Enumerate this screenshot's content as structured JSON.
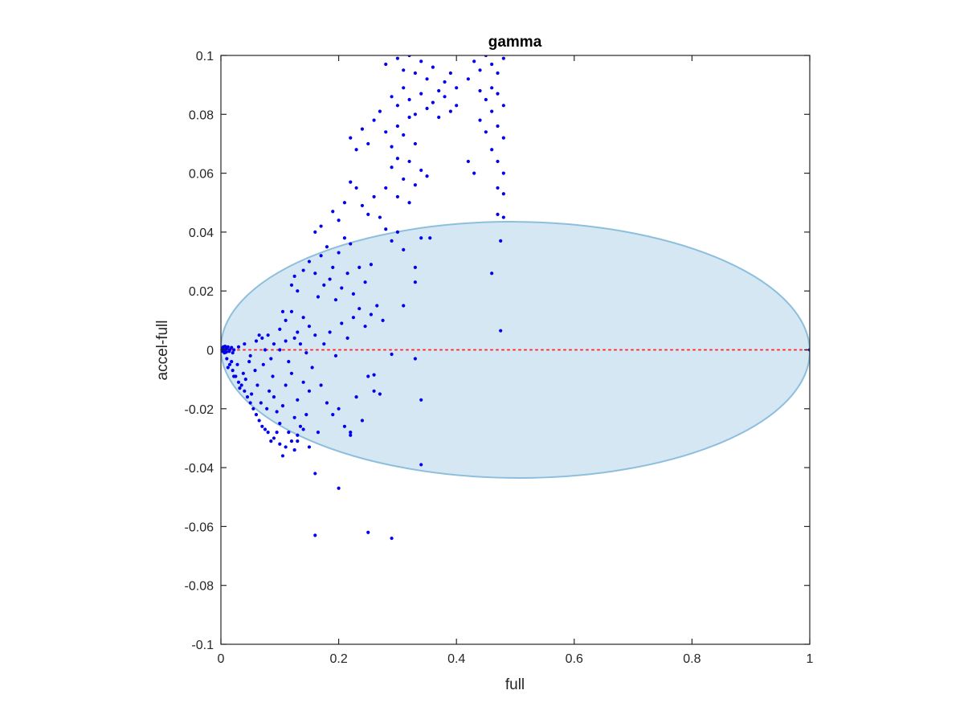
{
  "chart_data": {
    "type": "scatter",
    "title": "gamma",
    "xlabel": "full",
    "ylabel": "accel-full",
    "xlim": [
      0,
      1
    ],
    "ylim": [
      -0.1,
      0.1
    ],
    "xticks": [
      "0",
      "0.2",
      "0.4",
      "0.6",
      "0.8",
      "1"
    ],
    "yticks": [
      "-0.1",
      "-0.08",
      "-0.06",
      "-0.04",
      "-0.02",
      "0",
      "0.02",
      "0.04",
      "0.06",
      "0.08",
      "0.1"
    ],
    "grid": false,
    "colors": {
      "points": "#0000ee",
      "reference_line": "#ff3030",
      "ellipse_fill": "#d6e7f4",
      "ellipse_edge": "#8dbfdd",
      "axes": "#262626"
    },
    "reference_line": {
      "y": 0,
      "x_from": 0,
      "x_to": 1,
      "style": "dotted"
    },
    "ellipse": {
      "cx": 0.5,
      "cy": 0.0,
      "rx": 0.5,
      "ry": 0.0435,
      "tilt_deg": 0.4
    },
    "points": [
      [
        0.0,
        0.0
      ],
      [
        0.002,
        0.0005
      ],
      [
        0.003,
        -0.0005
      ],
      [
        0.004,
        0.001
      ],
      [
        0.005,
        0.0
      ],
      [
        0.006,
        -0.001
      ],
      [
        0.007,
        0.0012
      ],
      [
        0.008,
        0.0
      ],
      [
        0.009,
        -0.0008
      ],
      [
        0.01,
        0.0005
      ],
      [
        0.012,
        0.001
      ],
      [
        0.014,
        -0.0005
      ],
      [
        0.015,
        0.0
      ],
      [
        0.018,
        0.0008
      ],
      [
        0.02,
        -0.001
      ],
      [
        0.022,
        0.0
      ],
      [
        0.01,
        -0.003
      ],
      [
        0.015,
        -0.005
      ],
      [
        0.02,
        -0.007
      ],
      [
        0.025,
        -0.009
      ],
      [
        0.03,
        -0.011
      ],
      [
        0.035,
        -0.012
      ],
      [
        0.04,
        -0.014
      ],
      [
        0.045,
        -0.016
      ],
      [
        0.05,
        -0.018
      ],
      [
        0.055,
        -0.02
      ],
      [
        0.06,
        -0.022
      ],
      [
        0.065,
        -0.024
      ],
      [
        0.07,
        -0.026
      ],
      [
        0.075,
        -0.027
      ],
      [
        0.08,
        -0.028
      ],
      [
        0.012,
        -0.006
      ],
      [
        0.018,
        -0.004
      ],
      [
        0.022,
        -0.009
      ],
      [
        0.028,
        -0.005
      ],
      [
        0.032,
        -0.013
      ],
      [
        0.038,
        -0.008
      ],
      [
        0.042,
        -0.01
      ],
      [
        0.048,
        -0.004
      ],
      [
        0.052,
        -0.015
      ],
      [
        0.058,
        -0.007
      ],
      [
        0.062,
        -0.012
      ],
      [
        0.068,
        -0.018
      ],
      [
        0.072,
        -0.005
      ],
      [
        0.078,
        -0.02
      ],
      [
        0.082,
        -0.014
      ],
      [
        0.088,
        -0.009
      ],
      [
        0.03,
        0.001
      ],
      [
        0.04,
        0.002
      ],
      [
        0.05,
        -0.002
      ],
      [
        0.06,
        0.003
      ],
      [
        0.07,
        0.004
      ],
      [
        0.08,
        0.005
      ],
      [
        0.09,
        0.002
      ],
      [
        0.1,
        0.0
      ],
      [
        0.11,
        0.003
      ],
      [
        0.065,
        0.005
      ],
      [
        0.075,
        0.0
      ],
      [
        0.085,
        -0.003
      ],
      [
        0.09,
        -0.016
      ],
      [
        0.095,
        -0.021
      ],
      [
        0.1,
        -0.025
      ],
      [
        0.105,
        -0.019
      ],
      [
        0.11,
        -0.012
      ],
      [
        0.115,
        -0.028
      ],
      [
        0.12,
        -0.008
      ],
      [
        0.125,
        -0.023
      ],
      [
        0.13,
        -0.017
      ],
      [
        0.135,
        -0.026
      ],
      [
        0.14,
        -0.011
      ],
      [
        0.145,
        -0.022
      ],
      [
        0.15,
        -0.014
      ],
      [
        0.155,
        -0.006
      ],
      [
        0.09,
        -0.03
      ],
      [
        0.1,
        -0.032
      ],
      [
        0.11,
        -0.033
      ],
      [
        0.12,
        -0.031
      ],
      [
        0.13,
        -0.029
      ],
      [
        0.14,
        -0.027
      ],
      [
        0.105,
        -0.036
      ],
      [
        0.125,
        -0.034
      ],
      [
        0.095,
        -0.028
      ],
      [
        0.085,
        -0.031
      ],
      [
        0.1,
        0.007
      ],
      [
        0.11,
        0.01
      ],
      [
        0.12,
        0.013
      ],
      [
        0.13,
        0.006
      ],
      [
        0.14,
        0.011
      ],
      [
        0.15,
        0.008
      ],
      [
        0.16,
        0.005
      ],
      [
        0.105,
        0.013
      ],
      [
        0.115,
        -0.004
      ],
      [
        0.135,
        0.002
      ],
      [
        0.145,
        -0.001
      ],
      [
        0.125,
        0.004
      ],
      [
        0.12,
        0.022
      ],
      [
        0.125,
        0.025
      ],
      [
        0.13,
        0.02
      ],
      [
        0.14,
        0.027
      ],
      [
        0.15,
        0.03
      ],
      [
        0.16,
        0.026
      ],
      [
        0.17,
        0.032
      ],
      [
        0.18,
        0.035
      ],
      [
        0.19,
        0.028
      ],
      [
        0.2,
        0.033
      ],
      [
        0.21,
        0.038
      ],
      [
        0.22,
        0.036
      ],
      [
        0.165,
        0.018
      ],
      [
        0.175,
        0.022
      ],
      [
        0.185,
        0.024
      ],
      [
        0.195,
        0.017
      ],
      [
        0.205,
        0.021
      ],
      [
        0.215,
        0.026
      ],
      [
        0.225,
        0.019
      ],
      [
        0.235,
        0.028
      ],
      [
        0.245,
        0.023
      ],
      [
        0.255,
        0.029
      ],
      [
        0.16,
        0.04
      ],
      [
        0.17,
        0.042
      ],
      [
        0.19,
        0.047
      ],
      [
        0.2,
        0.044
      ],
      [
        0.21,
        0.05
      ],
      [
        0.22,
        0.057
      ],
      [
        0.23,
        0.055
      ],
      [
        0.24,
        0.049
      ],
      [
        0.25,
        0.046
      ],
      [
        0.26,
        0.052
      ],
      [
        0.27,
        0.045
      ],
      [
        0.28,
        0.041
      ],
      [
        0.175,
        0.002
      ],
      [
        0.185,
        0.006
      ],
      [
        0.195,
        -0.002
      ],
      [
        0.205,
        0.009
      ],
      [
        0.215,
        0.004
      ],
      [
        0.225,
        0.011
      ],
      [
        0.235,
        0.014
      ],
      [
        0.245,
        0.008
      ],
      [
        0.255,
        0.012
      ],
      [
        0.265,
        0.015
      ],
      [
        0.275,
        0.01
      ],
      [
        0.17,
        -0.012
      ],
      [
        0.18,
        -0.018
      ],
      [
        0.19,
        -0.022
      ],
      [
        0.2,
        -0.02
      ],
      [
        0.21,
        -0.026
      ],
      [
        0.22,
        -0.028
      ],
      [
        0.23,
        -0.016
      ],
      [
        0.24,
        -0.024
      ],
      [
        0.25,
        -0.009
      ],
      [
        0.26,
        -0.014
      ],
      [
        0.22,
        0.072
      ],
      [
        0.23,
        0.068
      ],
      [
        0.24,
        0.075
      ],
      [
        0.25,
        0.07
      ],
      [
        0.26,
        0.078
      ],
      [
        0.27,
        0.081
      ],
      [
        0.28,
        0.074
      ],
      [
        0.29,
        0.069
      ],
      [
        0.3,
        0.076
      ],
      [
        0.31,
        0.073
      ],
      [
        0.32,
        0.079
      ],
      [
        0.33,
        0.07
      ],
      [
        0.28,
        0.097
      ],
      [
        0.3,
        0.099
      ],
      [
        0.31,
        0.095
      ],
      [
        0.32,
        0.1
      ],
      [
        0.33,
        0.094
      ],
      [
        0.34,
        0.098
      ],
      [
        0.35,
        0.092
      ],
      [
        0.36,
        0.096
      ],
      [
        0.37,
        0.088
      ],
      [
        0.38,
        0.091
      ],
      [
        0.39,
        0.094
      ],
      [
        0.4,
        0.089
      ],
      [
        0.29,
        0.086
      ],
      [
        0.3,
        0.083
      ],
      [
        0.31,
        0.089
      ],
      [
        0.32,
        0.085
      ],
      [
        0.33,
        0.08
      ],
      [
        0.34,
        0.087
      ],
      [
        0.35,
        0.082
      ],
      [
        0.36,
        0.084
      ],
      [
        0.37,
        0.079
      ],
      [
        0.38,
        0.086
      ],
      [
        0.39,
        0.081
      ],
      [
        0.4,
        0.083
      ],
      [
        0.29,
        0.062
      ],
      [
        0.3,
        0.065
      ],
      [
        0.31,
        0.058
      ],
      [
        0.32,
        0.064
      ],
      [
        0.33,
        0.056
      ],
      [
        0.34,
        0.061
      ],
      [
        0.35,
        0.059
      ],
      [
        0.3,
        0.052
      ],
      [
        0.32,
        0.05
      ],
      [
        0.28,
        0.055
      ],
      [
        0.42,
        0.092
      ],
      [
        0.43,
        0.098
      ],
      [
        0.44,
        0.095
      ],
      [
        0.45,
        0.1
      ],
      [
        0.46,
        0.097
      ],
      [
        0.47,
        0.094
      ],
      [
        0.48,
        0.099
      ],
      [
        0.44,
        0.088
      ],
      [
        0.45,
        0.085
      ],
      [
        0.46,
        0.089
      ],
      [
        0.47,
        0.087
      ],
      [
        0.48,
        0.083
      ],
      [
        0.44,
        0.078
      ],
      [
        0.45,
        0.074
      ],
      [
        0.46,
        0.081
      ],
      [
        0.47,
        0.076
      ],
      [
        0.48,
        0.072
      ],
      [
        0.46,
        0.068
      ],
      [
        0.47,
        0.064
      ],
      [
        0.48,
        0.06
      ],
      [
        0.47,
        0.055
      ],
      [
        0.48,
        0.053
      ],
      [
        0.47,
        0.046
      ],
      [
        0.48,
        0.045
      ],
      [
        0.42,
        0.064
      ],
      [
        0.43,
        0.06
      ],
      [
        0.475,
        0.037
      ],
      [
        0.46,
        0.026
      ],
      [
        0.475,
        0.0065
      ],
      [
        0.34,
        0.038
      ],
      [
        0.355,
        0.038
      ],
      [
        0.33,
        0.028
      ],
      [
        0.33,
        0.023
      ],
      [
        0.31,
        0.034
      ],
      [
        0.3,
        0.04
      ],
      [
        0.29,
        0.037
      ],
      [
        0.31,
        0.015
      ],
      [
        0.29,
        -0.0015
      ],
      [
        0.33,
        -0.003
      ],
      [
        0.34,
        -0.017
      ],
      [
        0.34,
        -0.039
      ],
      [
        0.16,
        -0.042
      ],
      [
        0.2,
        -0.047
      ],
      [
        0.16,
        -0.063
      ],
      [
        0.25,
        -0.062
      ],
      [
        0.29,
        -0.064
      ],
      [
        0.13,
        -0.031
      ],
      [
        0.15,
        -0.033
      ],
      [
        0.165,
        -0.028
      ],
      [
        0.22,
        -0.029
      ],
      [
        0.26,
        -0.0085
      ],
      [
        0.27,
        -0.015
      ],
      [
        1.0,
        0.0
      ]
    ]
  }
}
